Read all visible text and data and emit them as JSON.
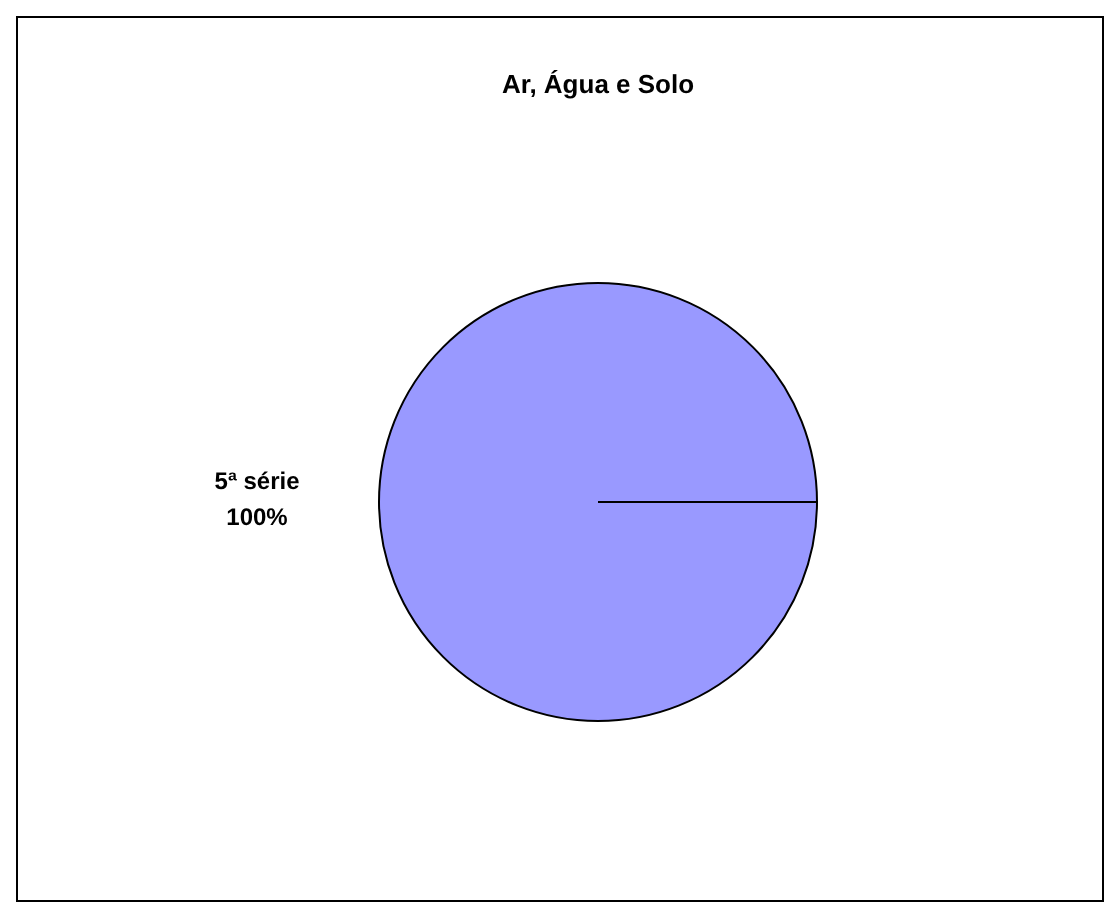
{
  "chart_data": {
    "type": "pie",
    "title": "Ar, Água e Solo",
    "categories": [
      "5ª série"
    ],
    "values": [
      100
    ],
    "value_labels": [
      "100%"
    ],
    "colors": [
      "#9999ff"
    ],
    "legend": false
  }
}
